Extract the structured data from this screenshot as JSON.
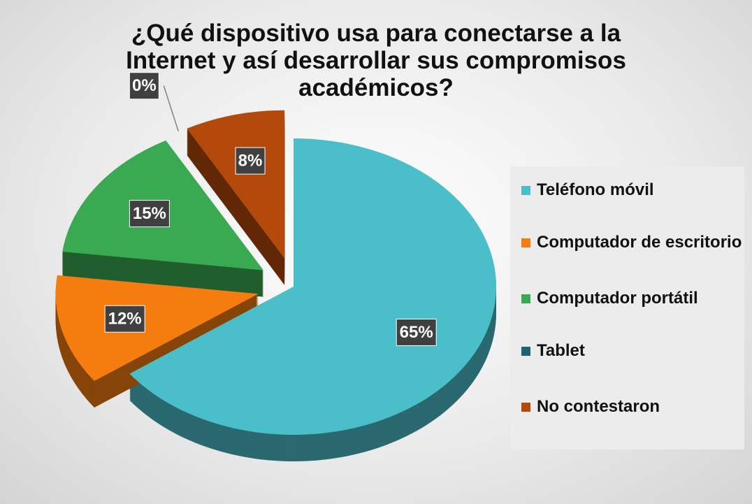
{
  "chart_data": {
    "type": "pie",
    "title": "¿Qué dispositivo usa para conectarse a la Internet y así desarrollar sus compromisos académicos?",
    "categories": [
      "Teléfono móvil",
      "Computador de escritorio",
      "Computador portátil",
      "Tablet",
      "No contestaron"
    ],
    "values": [
      65,
      12,
      15,
      0,
      8
    ],
    "value_labels": [
      "65%",
      "12%",
      "15%",
      "0%",
      "8%"
    ],
    "colors": [
      "#4bbfc9",
      "#f57c0e",
      "#3aaa52",
      "#1d6470",
      "#b34a0c"
    ],
    "legend": "right"
  }
}
